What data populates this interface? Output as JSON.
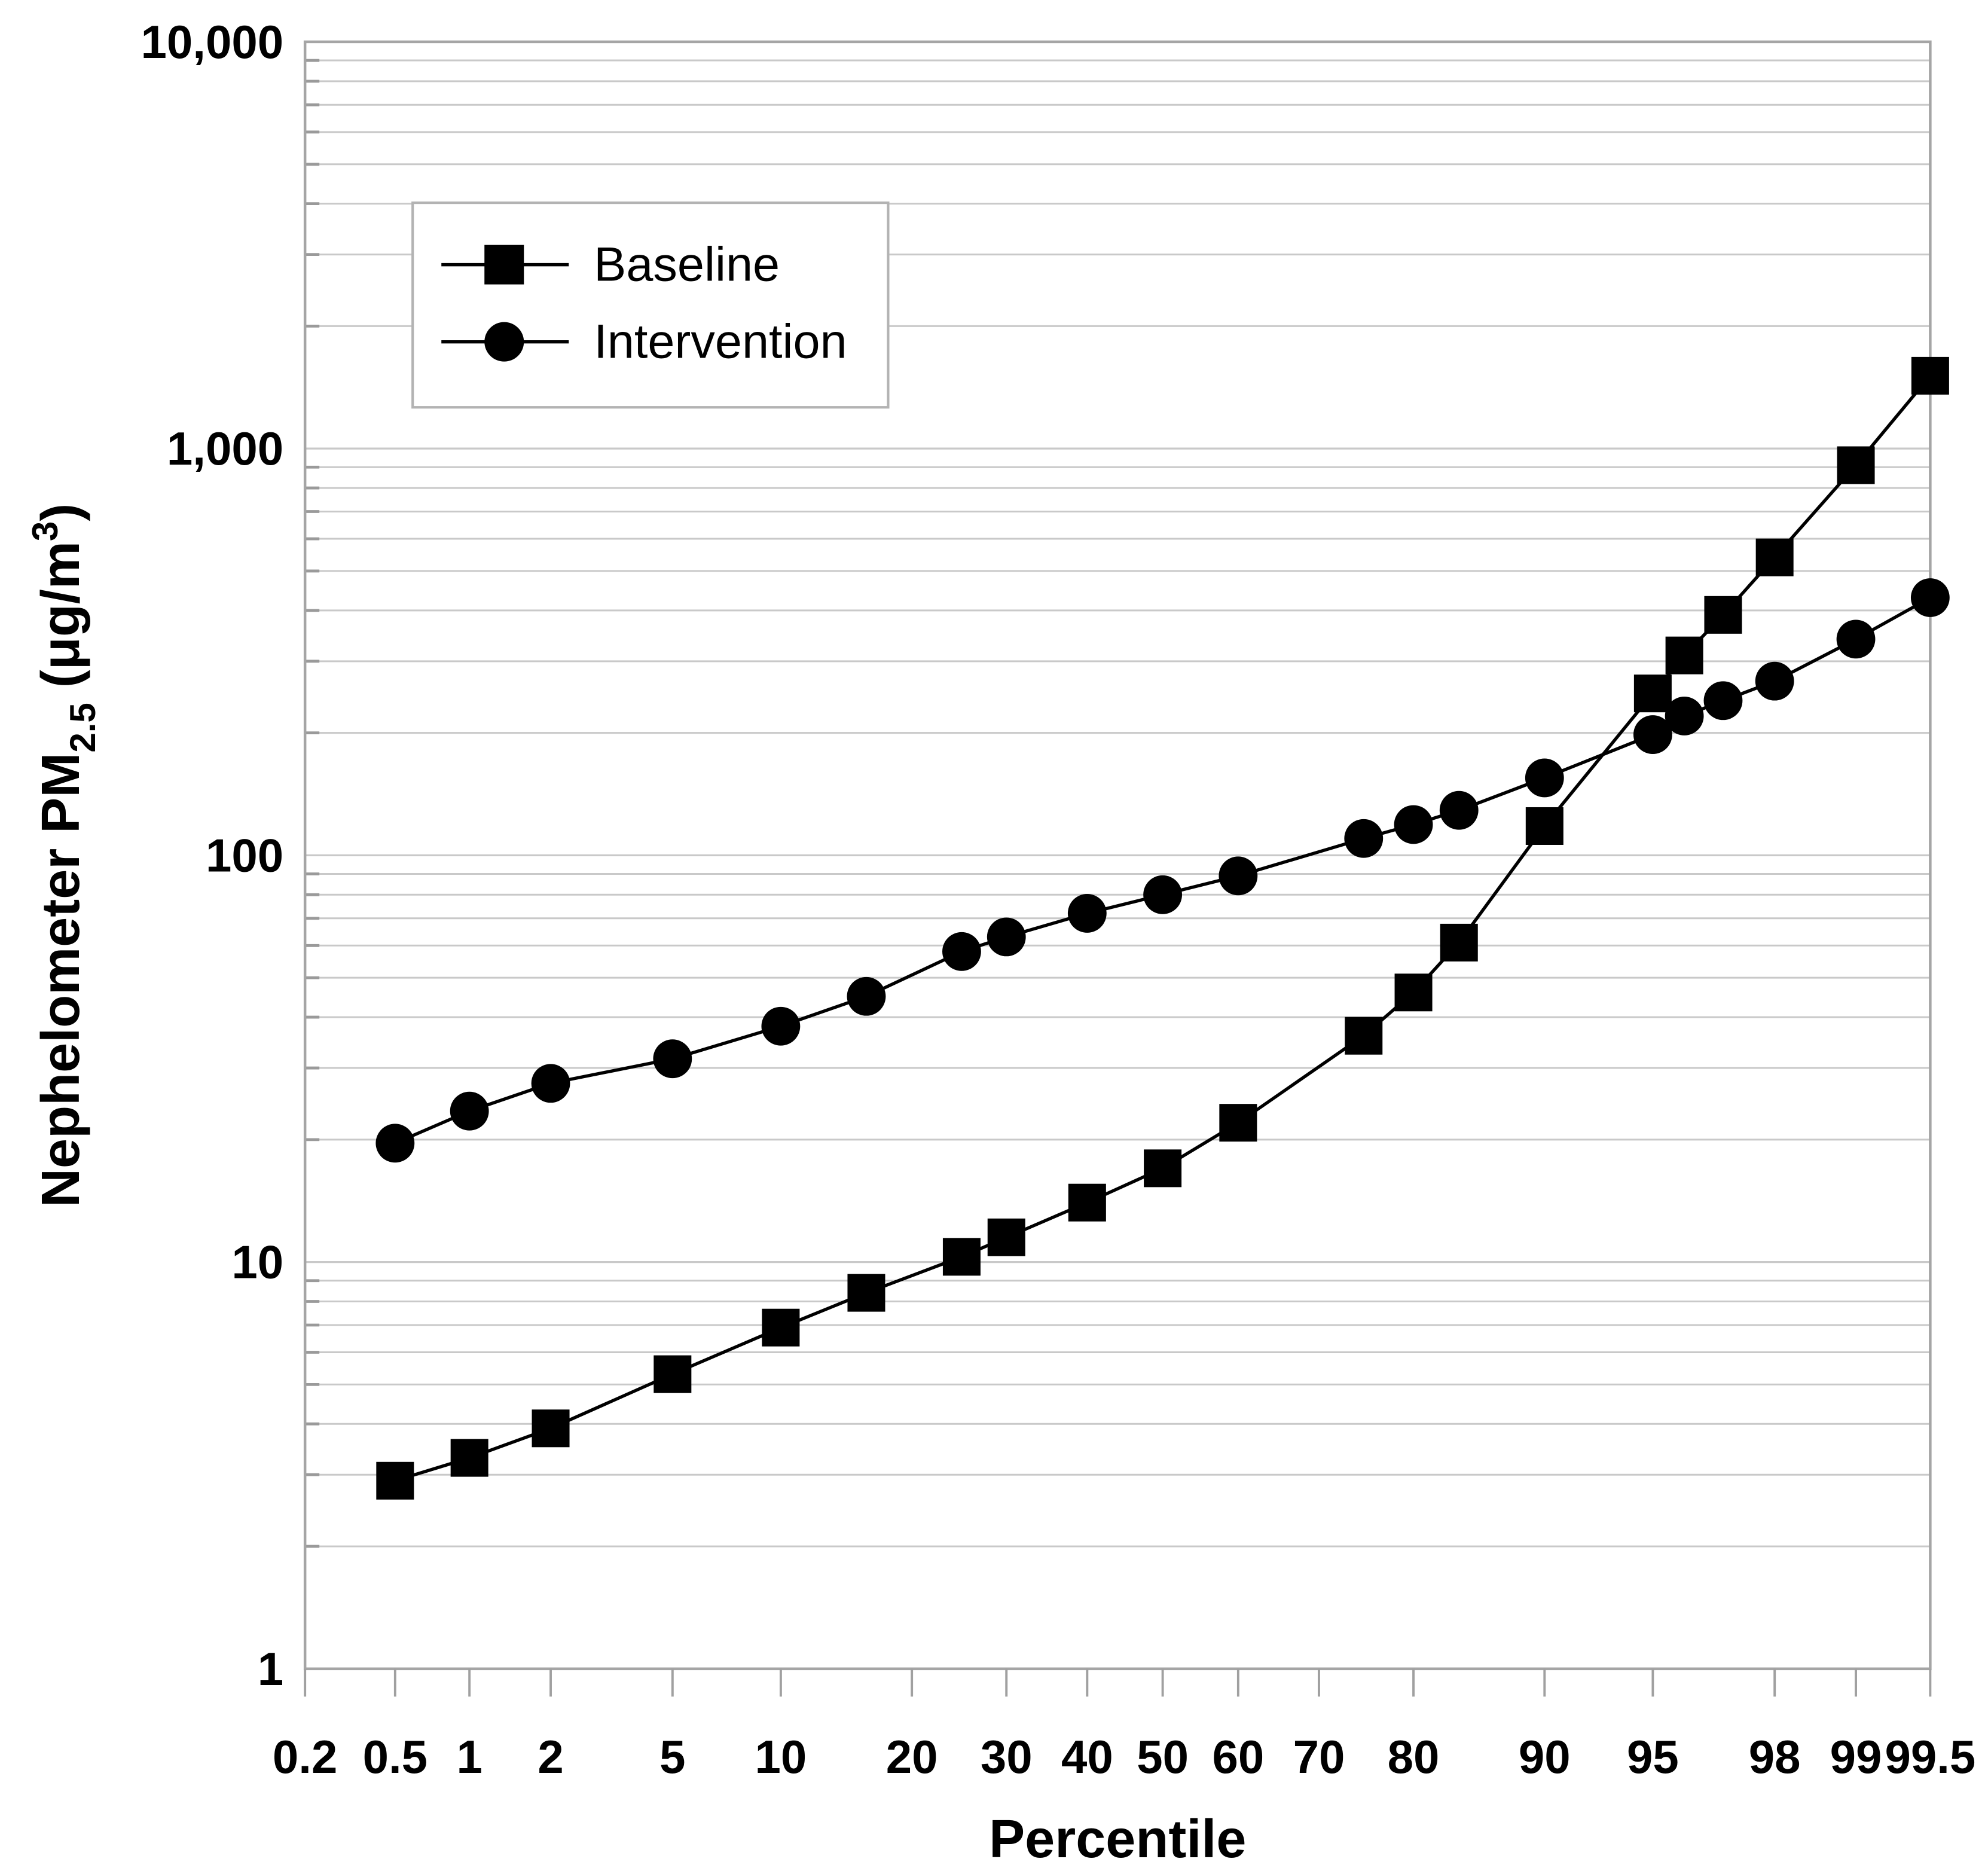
{
  "chart_data": {
    "type": "line",
    "title": "",
    "xlabel": "Percentile",
    "ylabel": "Nephelometer PM2.5 (μg/m3)",
    "ylabel_parts": [
      {
        "text": "Nephelometer PM",
        "style": "base"
      },
      {
        "text": "2.5",
        "style": "sub"
      },
      {
        "text": " (μg/m",
        "style": "base"
      },
      {
        "text": "3",
        "style": "sup"
      },
      {
        "text": ")",
        "style": "base"
      }
    ],
    "x_scale": "probit",
    "y_scale": "log10",
    "xlim": [
      0.2,
      99.5
    ],
    "ylim": [
      1,
      10000
    ],
    "grid": "horizontal-minor-and-decade",
    "x_ticks": [
      {
        "value": 0.2,
        "label": "0.2"
      },
      {
        "value": 0.5,
        "label": "0.5"
      },
      {
        "value": 1,
        "label": "1"
      },
      {
        "value": 2,
        "label": "2"
      },
      {
        "value": 5,
        "label": "5"
      },
      {
        "value": 10,
        "label": "10"
      },
      {
        "value": 20,
        "label": "20"
      },
      {
        "value": 30,
        "label": "30"
      },
      {
        "value": 40,
        "label": "40"
      },
      {
        "value": 50,
        "label": "50"
      },
      {
        "value": 60,
        "label": "60"
      },
      {
        "value": 70,
        "label": "70"
      },
      {
        "value": 80,
        "label": "80"
      },
      {
        "value": 90,
        "label": "90"
      },
      {
        "value": 95,
        "label": "95"
      },
      {
        "value": 98,
        "label": "98"
      },
      {
        "value": 99,
        "label": "99"
      },
      {
        "value": 99.5,
        "label": "99.5"
      }
    ],
    "y_ticks": [
      {
        "value": 1,
        "label": "1"
      },
      {
        "value": 10,
        "label": "10"
      },
      {
        "value": 100,
        "label": "100"
      },
      {
        "value": 1000,
        "label": "1,000"
      },
      {
        "value": 10000,
        "label": "10,000"
      }
    ],
    "legend": {
      "position": "upper-left-inside",
      "entries": [
        {
          "label": "Baseline",
          "marker": "square"
        },
        {
          "label": "Intervention",
          "marker": "circle"
        }
      ]
    },
    "percentiles": [
      0.5,
      1,
      2,
      5,
      10,
      16,
      25,
      30,
      40,
      50,
      60,
      75,
      80,
      84,
      90,
      95,
      96,
      97,
      98,
      99,
      99.5
    ],
    "series": [
      {
        "name": "Baseline",
        "marker": "square",
        "color": "#000000",
        "values": [
          2.9,
          3.3,
          3.9,
          5.3,
          6.9,
          8.4,
          10.3,
          11.5,
          14,
          17,
          22,
          36,
          46,
          61,
          118,
          250,
          310,
          390,
          540,
          910,
          1510
        ]
      },
      {
        "name": "Intervention",
        "marker": "circle",
        "color": "#000000",
        "values": [
          19.6,
          23.5,
          27.5,
          31.6,
          38,
          45,
          58,
          63,
          72,
          80,
          89,
          110,
          119,
          129,
          155,
          198,
          220,
          240,
          268,
          340,
          430
        ]
      }
    ]
  },
  "colors": {
    "background": "#ffffff",
    "grid": "#c9c9c9",
    "frame": "#a5a5a5",
    "tick": "#a0a0a0",
    "inner_tick": "#9a9a9a",
    "text": "#000000",
    "series": "#000000",
    "legend_border": "#b3b3b3",
    "legend_fill": "#ffffff"
  }
}
